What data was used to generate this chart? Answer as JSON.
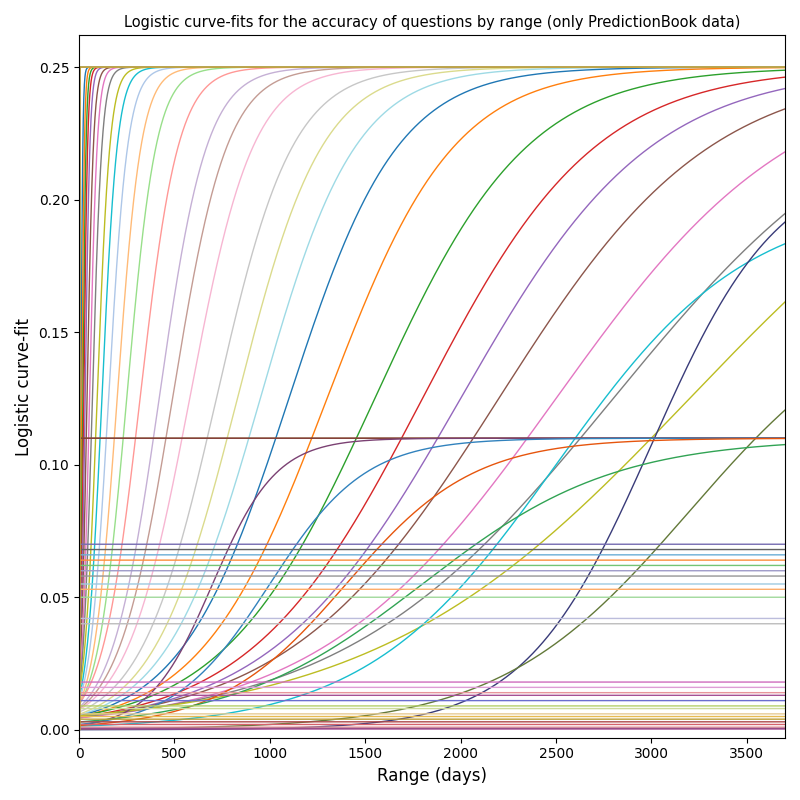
{
  "title": "Logistic curve-fits for the accuracy of questions by range (only PredictionBook data)",
  "xlabel": "Range (days)",
  "ylabel": "Logistic curve-fit",
  "xlim": [
    0,
    3700
  ],
  "ylim": [
    -0.003,
    0.262
  ],
  "x_ticks": [
    0,
    500,
    1000,
    1500,
    2000,
    2500,
    3000,
    3500
  ],
  "y_ticks": [
    0.0,
    0.05,
    0.1,
    0.15,
    0.2,
    0.25
  ],
  "figsize": [
    8.0,
    8.0
  ],
  "dpi": 100,
  "curves": [
    {
      "L": 0.25,
      "k": 0.2,
      "x0": 10
    },
    {
      "L": 0.25,
      "k": 0.15,
      "x0": 15
    },
    {
      "L": 0.25,
      "k": 0.12,
      "x0": 20
    },
    {
      "L": 0.25,
      "k": 0.1,
      "x0": 25
    },
    {
      "L": 0.25,
      "k": 0.08,
      "x0": 32
    },
    {
      "L": 0.25,
      "k": 0.06,
      "x0": 42
    },
    {
      "L": 0.25,
      "k": 0.05,
      "x0": 55
    },
    {
      "L": 0.25,
      "k": 0.04,
      "x0": 70
    },
    {
      "L": 0.25,
      "k": 0.03,
      "x0": 95
    },
    {
      "L": 0.25,
      "k": 0.025,
      "x0": 120
    },
    {
      "L": 0.25,
      "k": 0.02,
      "x0": 155
    },
    {
      "L": 0.25,
      "k": 0.016,
      "x0": 200
    },
    {
      "L": 0.25,
      "k": 0.013,
      "x0": 250
    },
    {
      "L": 0.25,
      "k": 0.01,
      "x0": 320
    },
    {
      "L": 0.25,
      "k": 0.008,
      "x0": 420
    },
    {
      "L": 0.25,
      "k": 0.007,
      "x0": 490
    },
    {
      "L": 0.25,
      "k": 0.006,
      "x0": 580
    },
    {
      "L": 0.25,
      "k": 0.005,
      "x0": 720
    },
    {
      "L": 0.25,
      "k": 0.0045,
      "x0": 830
    },
    {
      "L": 0.25,
      "k": 0.004,
      "x0": 950
    },
    {
      "L": 0.25,
      "k": 0.0035,
      "x0": 1100
    },
    {
      "L": 0.25,
      "k": 0.003,
      "x0": 1300
    },
    {
      "L": 0.25,
      "k": 0.0025,
      "x0": 1550
    },
    {
      "L": 0.25,
      "k": 0.0022,
      "x0": 1800
    },
    {
      "L": 0.25,
      "k": 0.002,
      "x0": 2000
    },
    {
      "L": 0.25,
      "k": 0.0018,
      "x0": 2200
    },
    {
      "L": 0.25,
      "k": 0.0016,
      "x0": 2500
    },
    {
      "L": 0.25,
      "k": 0.0014,
      "x0": 2800
    },
    {
      "L": 0.25,
      "k": 0.0012,
      "x0": 3200
    },
    {
      "L": 0.2,
      "k": 0.002,
      "x0": 2500
    },
    {
      "L": 0.215,
      "k": 0.003,
      "x0": 3000
    },
    {
      "L": 0.165,
      "k": 0.002,
      "x0": 3200
    },
    {
      "L": 0.11,
      "k": 50.0,
      "x0": 1
    },
    {
      "L": 0.11,
      "k": 50.0,
      "x0": 2
    },
    {
      "L": 0.11,
      "k": 0.006,
      "x0": 700
    },
    {
      "L": 0.11,
      "k": 0.004,
      "x0": 1000
    },
    {
      "L": 0.11,
      "k": 0.003,
      "x0": 1400
    },
    {
      "L": 0.11,
      "k": 0.002,
      "x0": 1800
    },
    {
      "L": 0.07,
      "k": 50.0,
      "x0": 1
    },
    {
      "L": 0.068,
      "k": 50.0,
      "x0": 1
    },
    {
      "L": 0.066,
      "k": 50.0,
      "x0": 1
    },
    {
      "L": 0.064,
      "k": 50.0,
      "x0": 1
    },
    {
      "L": 0.062,
      "k": 50.0,
      "x0": 1
    },
    {
      "L": 0.06,
      "k": 50.0,
      "x0": 1
    },
    {
      "L": 0.058,
      "k": 50.0,
      "x0": 1
    },
    {
      "L": 0.055,
      "k": 50.0,
      "x0": 1
    },
    {
      "L": 0.053,
      "k": 50.0,
      "x0": 1
    },
    {
      "L": 0.05,
      "k": 50.0,
      "x0": 1
    },
    {
      "L": 0.042,
      "k": 50.0,
      "x0": 1
    },
    {
      "L": 0.04,
      "k": 50.0,
      "x0": 1
    },
    {
      "L": 0.018,
      "k": 50.0,
      "x0": 1
    },
    {
      "L": 0.016,
      "k": 50.0,
      "x0": 1
    },
    {
      "L": 0.014,
      "k": 50.0,
      "x0": 1
    },
    {
      "L": 0.013,
      "k": 50.0,
      "x0": 1
    },
    {
      "L": 0.011,
      "k": 50.0,
      "x0": 1
    },
    {
      "L": 0.009,
      "k": 50.0,
      "x0": 1
    },
    {
      "L": 0.008,
      "k": 50.0,
      "x0": 1
    },
    {
      "L": 0.006,
      "k": 50.0,
      "x0": 1
    },
    {
      "L": 0.005,
      "k": 50.0,
      "x0": 1
    },
    {
      "L": 0.004,
      "k": 50.0,
      "x0": 1
    },
    {
      "L": 0.003,
      "k": 50.0,
      "x0": 1
    },
    {
      "L": 0.002,
      "k": 50.0,
      "x0": 1
    },
    {
      "L": 0.001,
      "k": 50.0,
      "x0": 1
    },
    {
      "L": 0.0005,
      "k": 50.0,
      "x0": 1
    },
    {
      "L": 0.0003,
      "k": 50.0,
      "x0": 1
    },
    {
      "L": 0.25,
      "k": 50.0,
      "x0": 1
    },
    {
      "L": 0.25,
      "k": 50.0,
      "x0": 2
    },
    {
      "L": 0.25,
      "k": 50.0,
      "x0": 3
    },
    {
      "L": 0.25,
      "k": 50.0,
      "x0": 4
    },
    {
      "L": 0.25,
      "k": 50.0,
      "x0": 5
    }
  ]
}
